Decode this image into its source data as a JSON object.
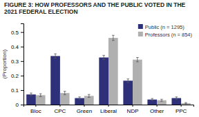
{
  "chart_data": {
    "type": "bar",
    "title": [
      "FIGURE 3: HOW PROFESSORS AND THE PUBLIC VOTED IN THE",
      "2021 FEDERAL ELECTION"
    ],
    "ylabel": "(Proportion)",
    "categories": [
      "Bloc",
      "CPC",
      "Green",
      "Liberal",
      "NDP",
      "Other",
      "PPC"
    ],
    "series": [
      {
        "name": "Public (n = 1295)",
        "color": "#2E317A",
        "values": [
          0.07,
          0.335,
          0.045,
          0.325,
          0.165,
          0.035,
          0.045
        ],
        "errors": [
          0.01,
          0.015,
          0.008,
          0.015,
          0.012,
          0.007,
          0.008
        ]
      },
      {
        "name": "Professors (n = 854)",
        "color": "#B0B0B0",
        "values": [
          0.065,
          0.08,
          0.06,
          0.46,
          0.31,
          0.03,
          0.01
        ],
        "errors": [
          0.01,
          0.012,
          0.01,
          0.018,
          0.015,
          0.007,
          0.004
        ]
      }
    ],
    "ylim": [
      0,
      0.56
    ],
    "yticks": [
      0,
      0.1,
      0.2,
      0.3,
      0.4,
      0.5
    ],
    "grid": false,
    "legend": "upper right"
  }
}
